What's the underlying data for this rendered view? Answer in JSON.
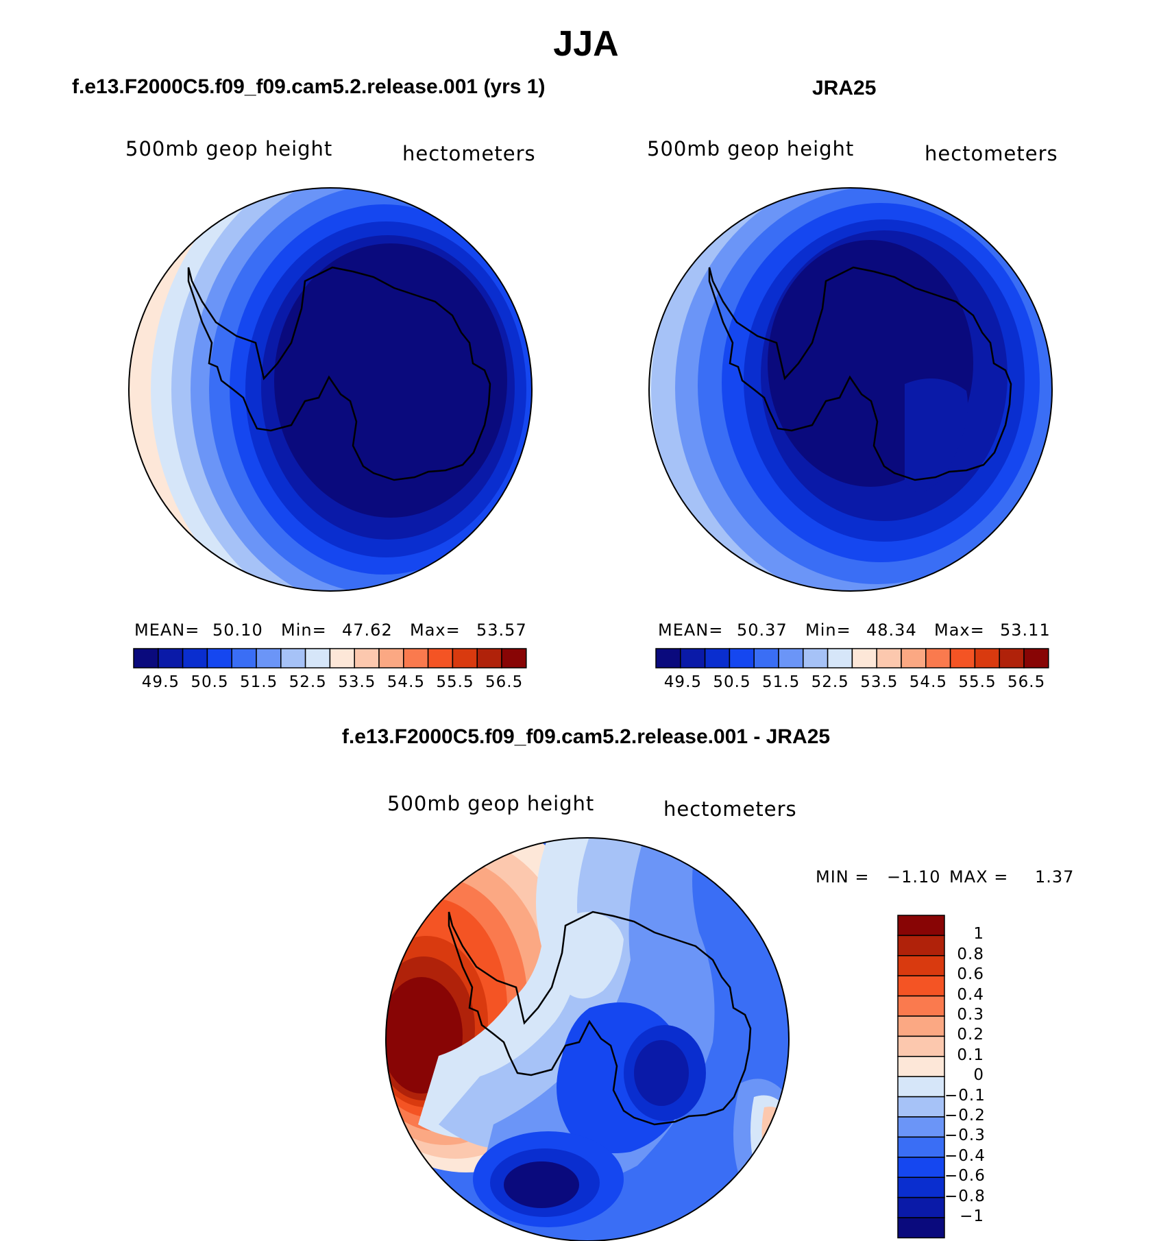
{
  "title": "JJA",
  "panels": [
    {
      "title": "f.e13.F2000C5.f09_f09.cam5.2.release.001 (yrs 1)",
      "variable": "500mb geop height",
      "units": "hectometers",
      "stats": {
        "mean_label": "MEAN=",
        "mean": "50.10",
        "min_label": "Min=",
        "min": "47.62",
        "max_label": "Max=",
        "max": "53.57"
      }
    },
    {
      "title": "JRA25",
      "variable": "500mb geop height",
      "units": "hectometers",
      "stats": {
        "mean_label": "MEAN=",
        "mean": "50.37",
        "min_label": "Min=",
        "min": "48.34",
        "max_label": "Max=",
        "max": "53.11"
      }
    }
  ],
  "colorbar": {
    "labels": [
      "49.5",
      "50.5",
      "51.5",
      "52.5",
      "53.5",
      "54.5",
      "55.5",
      "56.5"
    ],
    "levels": [
      49,
      49.5,
      50,
      50.5,
      51,
      51.5,
      52,
      52.5,
      53,
      53.5,
      54,
      54.5,
      55,
      55.5,
      56,
      56.5
    ],
    "colors": [
      "#0a0a7d",
      "#0a1aa8",
      "#0a2ecf",
      "#1547f0",
      "#3a6ef5",
      "#6b95f7",
      "#a6c2f7",
      "#d6e6f9",
      "#fde7d8",
      "#fcc8ae",
      "#fba883",
      "#fa7a4e",
      "#f45424",
      "#d93a0f",
      "#b0220a",
      "#880505"
    ]
  },
  "difference": {
    "title": "f.e13.F2000C5.f09_f09.cam5.2.release.001 - JRA25",
    "variable": "500mb geop height",
    "units": "hectometers",
    "stats": {
      "min_label": "MIN =",
      "min": "−1.10",
      "max_label": "MAX =",
      "max": "1.37"
    },
    "colorbar_labels": [
      "1",
      "0.8",
      "0.6",
      "0.4",
      "0.3",
      "0.2",
      "0.1",
      "0",
      "−0.1",
      "−0.2",
      "−0.3",
      "−0.4",
      "−0.6",
      "−0.8",
      "−1"
    ],
    "colors": [
      "#880505",
      "#b0220a",
      "#d93a0f",
      "#f45424",
      "#fa7a4e",
      "#fba883",
      "#fcc8ae",
      "#fde7d8",
      "#d6e6f9",
      "#a6c2f7",
      "#6b95f7",
      "#3a6ef5",
      "#1547f0",
      "#0a2ecf",
      "#0a1aa8",
      "#0a0a7d"
    ]
  },
  "chart_data": {
    "type": "heatmap",
    "projection": "south polar stereographic",
    "season": "JJA",
    "field": "500mb geop height",
    "units": "hectometers",
    "panels": [
      {
        "name": "f.e13.F2000C5.f09_f09.cam5.2.release.001 (yrs 1)",
        "mean": 50.1,
        "min": 47.62,
        "max": 53.57
      },
      {
        "name": "JRA25",
        "mean": 50.37,
        "min": 48.34,
        "max": 53.11
      },
      {
        "name": "f.e13.F2000C5.f09_f09.cam5.2.release.001 - JRA25",
        "min": -1.1,
        "max": 1.37
      }
    ],
    "mean_colorbar_levels": [
      49,
      49.5,
      50,
      50.5,
      51,
      51.5,
      52,
      52.5,
      53,
      53.5,
      54,
      54.5,
      55,
      55.5,
      56,
      56.5
    ],
    "diff_colorbar_levels": [
      1,
      0.8,
      0.6,
      0.4,
      0.3,
      0.2,
      0.1,
      0,
      -0.1,
      -0.2,
      -0.3,
      -0.4,
      -0.6,
      -0.8,
      -1
    ]
  }
}
